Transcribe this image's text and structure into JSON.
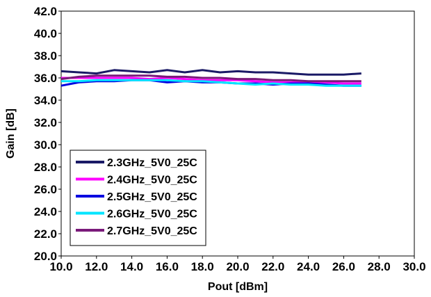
{
  "chart_data": {
    "type": "line",
    "title": "",
    "xlabel": "Pout [dBm]",
    "ylabel": "Gain [dB]",
    "xlim": [
      10,
      30
    ],
    "ylim": [
      20,
      42
    ],
    "x_ticks": [
      "10.0",
      "12.0",
      "14.0",
      "16.0",
      "18.0",
      "20.0",
      "22.0",
      "24.0",
      "26.0",
      "28.0",
      "30.0"
    ],
    "y_ticks": [
      "20.0",
      "22.0",
      "24.0",
      "26.0",
      "28.0",
      "30.0",
      "32.0",
      "34.0",
      "36.0",
      "38.0",
      "40.0",
      "42.0"
    ],
    "grid": false,
    "legend_position": "bottom-left",
    "x": [
      10,
      11,
      12,
      13,
      14,
      15,
      16,
      17,
      18,
      19,
      20,
      21,
      22,
      23,
      24,
      25,
      26,
      27
    ],
    "series": [
      {
        "name": "2.3GHz_5V0_25C",
        "color": "#1a1a66",
        "values": [
          36.6,
          36.5,
          36.4,
          36.7,
          36.6,
          36.5,
          36.7,
          36.5,
          36.7,
          36.5,
          36.6,
          36.5,
          36.5,
          36.4,
          36.3,
          36.3,
          36.3,
          36.4
        ]
      },
      {
        "name": "2.4GHz_5V0_25C",
        "color": "#ff00ff",
        "values": [
          36.0,
          36.0,
          36.0,
          36.0,
          36.0,
          35.9,
          36.0,
          35.9,
          35.8,
          35.8,
          35.8,
          35.7,
          35.6,
          35.6,
          35.6,
          35.6,
          35.5,
          35.5
        ]
      },
      {
        "name": "2.5GHz_5V0_25C",
        "color": "#0000e0",
        "values": [
          35.3,
          35.6,
          35.7,
          35.7,
          35.8,
          35.8,
          35.6,
          35.7,
          35.6,
          35.6,
          35.5,
          35.5,
          35.4,
          35.5,
          35.5,
          35.4,
          35.3,
          35.3
        ]
      },
      {
        "name": "2.6GHz_5V0_25C",
        "color": "#00e5ff",
        "values": [
          35.7,
          35.7,
          35.8,
          35.8,
          35.8,
          35.8,
          35.8,
          35.7,
          35.7,
          35.6,
          35.5,
          35.4,
          35.5,
          35.4,
          35.4,
          35.3,
          35.3,
          35.3
        ]
      },
      {
        "name": "2.7GHz_5V0_25C",
        "color": "#7a1a7a",
        "values": [
          35.9,
          36.1,
          36.2,
          36.2,
          36.2,
          36.2,
          36.1,
          36.1,
          36.0,
          36.0,
          35.9,
          35.9,
          35.8,
          35.8,
          35.7,
          35.7,
          35.7,
          35.7
        ]
      }
    ]
  }
}
